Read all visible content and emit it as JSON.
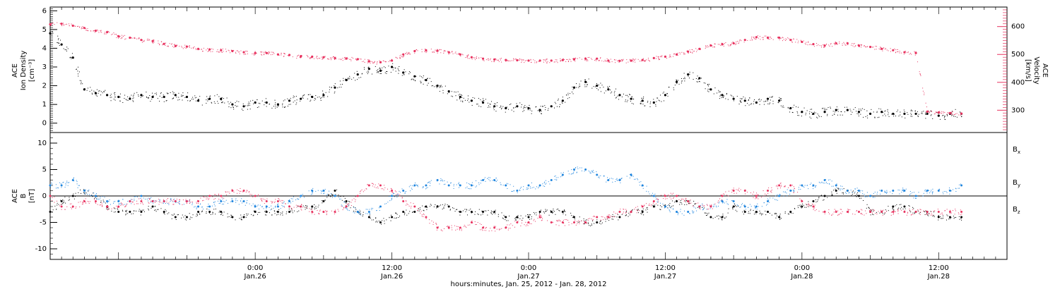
{
  "colors": {
    "density": "#000000",
    "velocity": "#e8325f",
    "bx": "#000000",
    "by": "#1f85de",
    "bz": "#e8325f",
    "frame": "#000000"
  },
  "chart_data": [
    {
      "type": "scatter",
      "panel": "top",
      "ylabel_left": [
        "ACE",
        "Ion Density",
        "[cm⁻³]"
      ],
      "ylabel_right": [
        "ACE",
        "Velocity",
        "[km/s]"
      ],
      "x_unit": "hours since Jan.25 2012 00:00",
      "xlim": [
        6,
        90
      ],
      "ylim_left": [
        -0.5,
        6.2
      ],
      "yticks_left": [
        0,
        1,
        2,
        3,
        4,
        5,
        6
      ],
      "ylim_right": [
        220,
        670
      ],
      "yticks_right": [
        300,
        400,
        500,
        600
      ],
      "series": [
        {
          "name": "Ion Density",
          "axis": "left",
          "color": "#000000",
          "x": [
            6,
            7,
            8,
            9,
            10,
            11,
            12,
            13,
            14,
            15,
            16,
            17,
            18,
            19,
            20,
            21,
            22,
            23,
            24,
            25,
            26,
            27,
            28,
            29,
            30,
            31,
            32,
            33,
            34,
            35,
            36,
            37,
            38,
            39,
            40,
            41,
            42,
            43,
            44,
            45,
            46,
            47,
            48,
            49,
            50,
            51,
            52,
            53,
            54,
            55,
            56,
            57,
            58,
            59,
            60,
            61,
            62,
            63,
            64,
            65,
            66,
            67,
            68,
            69,
            70,
            71,
            72,
            73,
            74,
            75,
            76,
            77,
            78,
            79,
            80,
            81,
            82,
            83,
            84,
            85,
            86
          ],
          "y": [
            4.8,
            4.2,
            3.5,
            1.8,
            1.6,
            1.5,
            1.4,
            1.3,
            1.5,
            1.4,
            1.4,
            1.5,
            1.4,
            1.2,
            1.3,
            1.3,
            1.0,
            0.9,
            1.1,
            1.1,
            1.0,
            1.2,
            1.3,
            1.4,
            1.5,
            1.9,
            2.3,
            2.6,
            2.9,
            2.8,
            3.0,
            2.7,
            2.5,
            2.3,
            2.0,
            1.7,
            1.4,
            1.2,
            1.1,
            0.9,
            0.8,
            0.9,
            0.8,
            0.7,
            0.9,
            1.2,
            1.9,
            2.2,
            2.0,
            1.8,
            1.5,
            1.3,
            1.2,
            1.1,
            1.5,
            2.2,
            2.6,
            2.4,
            1.8,
            1.5,
            1.3,
            1.2,
            1.1,
            1.3,
            1.2,
            0.8,
            0.6,
            0.5,
            0.6,
            0.7,
            0.7,
            0.6,
            0.5,
            0.6,
            0.5,
            0.5,
            0.5,
            0.5,
            0.4,
            0.5,
            0.5
          ]
        },
        {
          "name": "Velocity",
          "axis": "right",
          "color": "#e8325f",
          "x": [
            6,
            7,
            8,
            9,
            10,
            11,
            12,
            13,
            14,
            15,
            16,
            17,
            18,
            19,
            20,
            21,
            22,
            23,
            24,
            25,
            26,
            27,
            28,
            29,
            30,
            31,
            32,
            33,
            34,
            35,
            36,
            37,
            38,
            39,
            40,
            41,
            42,
            43,
            44,
            45,
            46,
            47,
            48,
            49,
            50,
            51,
            52,
            53,
            54,
            55,
            56,
            57,
            58,
            59,
            60,
            61,
            62,
            63,
            64,
            65,
            66,
            67,
            68,
            69,
            70,
            71,
            72,
            73,
            74,
            75,
            76,
            77,
            78,
            79,
            80,
            81,
            82,
            83,
            84,
            85,
            86
          ],
          "y": [
            608,
            610,
            603,
            595,
            585,
            580,
            565,
            560,
            552,
            548,
            538,
            530,
            528,
            520,
            518,
            515,
            512,
            508,
            505,
            505,
            500,
            498,
            493,
            492,
            490,
            487,
            485,
            483,
            475,
            472,
            478,
            500,
            512,
            515,
            513,
            508,
            500,
            490,
            485,
            482,
            480,
            479,
            478,
            478,
            478,
            480,
            482,
            485,
            485,
            478,
            477,
            478,
            480,
            487,
            492,
            500,
            510,
            520,
            532,
            537,
            540,
            552,
            562,
            560,
            560,
            552,
            545,
            537,
            532,
            540,
            540,
            532,
            527,
            520,
            515,
            508,
            505,
            295,
            292,
            290,
            288
          ]
        }
      ]
    },
    {
      "type": "scatter",
      "panel": "bottom",
      "ylabel_left": [
        "ACE",
        "B",
        "[nT]"
      ],
      "x_unit": "hours since Jan.25 2012 00:00",
      "xlim": [
        6,
        90
      ],
      "ylim": [
        -12,
        12
      ],
      "yticks": [
        -10,
        -5,
        0,
        5,
        10
      ],
      "legend_placement": "right",
      "series": [
        {
          "name": "Bx",
          "color": "#000000",
          "x": [
            6,
            7,
            8,
            9,
            10,
            11,
            12,
            13,
            14,
            15,
            16,
            17,
            18,
            19,
            20,
            21,
            22,
            23,
            24,
            25,
            26,
            27,
            28,
            29,
            30,
            31,
            32,
            33,
            34,
            35,
            36,
            37,
            38,
            39,
            40,
            41,
            42,
            43,
            44,
            45,
            46,
            47,
            48,
            49,
            50,
            51,
            52,
            53,
            54,
            55,
            56,
            57,
            58,
            59,
            60,
            61,
            62,
            63,
            64,
            65,
            66,
            67,
            68,
            69,
            70,
            71,
            72,
            73,
            74,
            75,
            76,
            77,
            78,
            79,
            80,
            81,
            82,
            83,
            84,
            85,
            86
          ],
          "y": [
            -3,
            -1,
            0,
            1,
            0,
            -2,
            -3,
            -3,
            -3,
            -2,
            -3,
            -4,
            -4,
            -3,
            -3,
            -3,
            -4,
            -4,
            -3,
            -3,
            -3,
            -3,
            -2,
            -2,
            -1,
            1,
            -1,
            -3,
            -4,
            -5,
            -4,
            -3,
            -3,
            -2,
            -2,
            -2,
            -3,
            -3,
            -3,
            -3,
            -4,
            -4,
            -4,
            -3,
            -3,
            -3,
            -4,
            -5,
            -5,
            -4,
            -4,
            -3,
            -3,
            -2,
            -2,
            -1,
            -1,
            -2,
            -4,
            -4,
            -2,
            -3,
            -3,
            -3,
            -4,
            -3,
            -2,
            -1,
            0,
            1,
            1,
            0,
            -3,
            -3,
            -2,
            -2,
            -3,
            -3,
            -4,
            -4,
            -4
          ]
        },
        {
          "name": "By",
          "color": "#1f85de",
          "x": [
            6,
            7,
            8,
            9,
            10,
            11,
            12,
            13,
            14,
            15,
            16,
            17,
            18,
            19,
            20,
            21,
            22,
            23,
            24,
            25,
            26,
            27,
            28,
            29,
            30,
            31,
            32,
            33,
            34,
            35,
            36,
            37,
            38,
            39,
            40,
            41,
            42,
            43,
            44,
            45,
            46,
            47,
            48,
            49,
            50,
            51,
            52,
            53,
            54,
            55,
            56,
            57,
            58,
            59,
            60,
            61,
            62,
            63,
            64,
            65,
            66,
            67,
            68,
            69,
            70,
            71,
            72,
            73,
            74,
            75,
            76,
            77,
            78,
            79,
            80,
            81,
            82,
            83,
            84,
            85,
            86
          ],
          "y": [
            2,
            2,
            3,
            1,
            0,
            -1,
            -1,
            -1,
            0,
            -1,
            -1,
            -1,
            -1,
            -2,
            -2,
            -1,
            -1,
            -1,
            -2,
            -2,
            -2,
            -1,
            0,
            1,
            1,
            0,
            -2,
            -3,
            -3,
            -2,
            0,
            1,
            2,
            2,
            3,
            2,
            2,
            2,
            3,
            3,
            2,
            1,
            2,
            2,
            3,
            4,
            5,
            5,
            4,
            3,
            3,
            4,
            2,
            0,
            -2,
            -3,
            -3,
            -2,
            -2,
            -1,
            -1,
            -2,
            -2,
            -1,
            0,
            1,
            2,
            2,
            3,
            2,
            1,
            1,
            0,
            1,
            1,
            1,
            0,
            1,
            1,
            1,
            2
          ]
        },
        {
          "name": "Bz",
          "color": "#e8325f",
          "x": [
            6,
            7,
            8,
            9,
            10,
            11,
            12,
            13,
            14,
            15,
            16,
            17,
            18,
            19,
            20,
            21,
            22,
            23,
            24,
            25,
            26,
            27,
            28,
            29,
            30,
            31,
            32,
            33,
            34,
            35,
            36,
            37,
            38,
            39,
            40,
            41,
            42,
            43,
            44,
            45,
            46,
            47,
            48,
            49,
            50,
            51,
            52,
            53,
            54,
            55,
            56,
            57,
            58,
            59,
            60,
            61,
            62,
            63,
            64,
            65,
            66,
            67,
            68,
            69,
            70,
            71,
            72,
            73,
            74,
            75,
            76,
            77,
            78,
            79,
            80,
            81,
            82,
            83,
            84,
            85,
            86
          ],
          "y": [
            0,
            -2,
            -2,
            -1,
            -1,
            -2,
            -2,
            -1,
            -1,
            -1,
            -1,
            -1,
            -1,
            -1,
            0,
            0,
            1,
            1,
            0,
            -1,
            -1,
            -2,
            -2,
            -3,
            -3,
            -3,
            -2,
            0,
            2,
            2,
            1,
            -1,
            -2,
            -4,
            -6,
            -6,
            -6,
            -5,
            -6,
            -6,
            -6,
            -5,
            -5,
            -4,
            -5,
            -5,
            -5,
            -5,
            -4,
            -4,
            -3,
            -3,
            -2,
            -1,
            0,
            0,
            -1,
            -2,
            -2,
            0,
            1,
            1,
            0,
            1,
            2,
            2,
            -1,
            -2,
            -3,
            -3,
            -3,
            -3,
            -3,
            -3,
            -3,
            -3,
            -3,
            -3,
            -3,
            -3,
            -3
          ]
        }
      ]
    }
  ],
  "top_panel": {
    "left_label": [
      "ACE",
      "Ion Density",
      "[cm⁻³]"
    ],
    "right_label": [
      "ACE",
      "Velocity",
      "[km/s]"
    ],
    "left_ticks": [
      "0",
      "1",
      "2",
      "3",
      "4",
      "5",
      "6"
    ],
    "right_ticks": [
      "300",
      "400",
      "500",
      "600"
    ]
  },
  "bottom_panel": {
    "left_label": [
      "ACE",
      "B",
      "[nT]"
    ],
    "left_ticks": [
      "-10",
      "-5",
      "0",
      "5",
      "10"
    ],
    "legend": [
      {
        "base": "B",
        "sub": "x",
        "color": "#000000"
      },
      {
        "base": "B",
        "sub": "y",
        "color": "#1f85de"
      },
      {
        "base": "B",
        "sub": "z",
        "color": "#e8325f"
      }
    ]
  },
  "x_axis": {
    "ticks": [
      {
        "time": "0:00",
        "date": "Jan.26",
        "hour": 24
      },
      {
        "time": "12:00",
        "date": "Jan.26",
        "hour": 36
      },
      {
        "time": "0:00",
        "date": "Jan.27",
        "hour": 48
      },
      {
        "time": "12:00",
        "date": "Jan.27",
        "hour": 60
      },
      {
        "time": "0:00",
        "date": "Jan.28",
        "hour": 72
      },
      {
        "time": "12:00",
        "date": "Jan.28",
        "hour": 84
      }
    ],
    "label": "hours:minutes, Jan. 25, 2012 - Jan. 28, 2012"
  }
}
